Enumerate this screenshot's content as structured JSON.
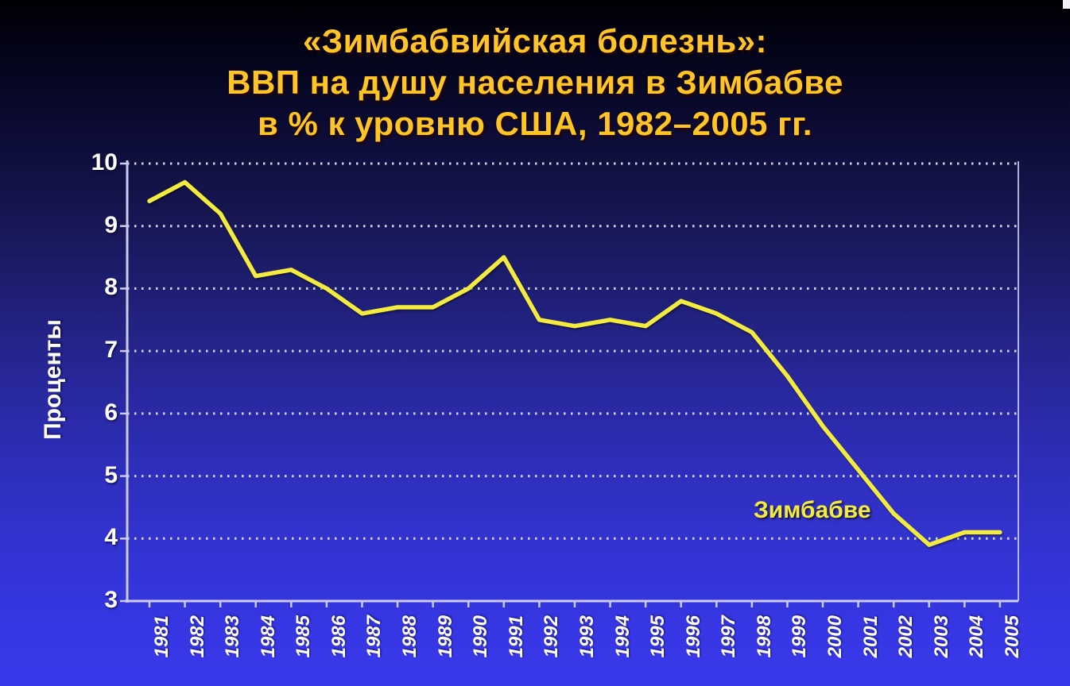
{
  "slide": {
    "title_lines": [
      "«Зимбабвийская болезнь»:",
      "ВВП на душу населения в Зимбабве",
      "в % к уровню США, 1982–2005 гг."
    ]
  },
  "colors": {
    "title": "#ffc526",
    "line": "#f3eb3d",
    "axis": "#ccccee",
    "grid_dots": "#e8e8f8",
    "tick_text": "#ffffff"
  },
  "chart_data": {
    "type": "line",
    "title": "«Зимбабвийская болезнь»: ВВП на душу населения в Зимбабве в % к уровню США, 1982–2005 гг.",
    "ylabel": "Проценты",
    "xlabel": "",
    "series_label": "Зимбабве",
    "legend_position": "inside-right",
    "grid": "horizontal-dotted",
    "ylim": [
      3,
      10
    ],
    "yticks": [
      10,
      9,
      8,
      7,
      6,
      5,
      4,
      3
    ],
    "categories": [
      1981,
      1982,
      1983,
      1984,
      1985,
      1986,
      1987,
      1988,
      1989,
      1990,
      1991,
      1992,
      1993,
      1994,
      1995,
      1996,
      1997,
      1998,
      1999,
      2000,
      2001,
      2002,
      2003,
      2004,
      2005
    ],
    "series": [
      {
        "name": "Зимбабве",
        "values": [
          9.4,
          9.7,
          9.2,
          8.2,
          8.3,
          8.0,
          7.6,
          7.7,
          7.7,
          8.0,
          8.5,
          7.5,
          7.4,
          7.5,
          7.4,
          7.8,
          7.6,
          7.3,
          6.6,
          5.8,
          5.1,
          4.4,
          3.9,
          4.1,
          4.1
        ]
      }
    ]
  }
}
